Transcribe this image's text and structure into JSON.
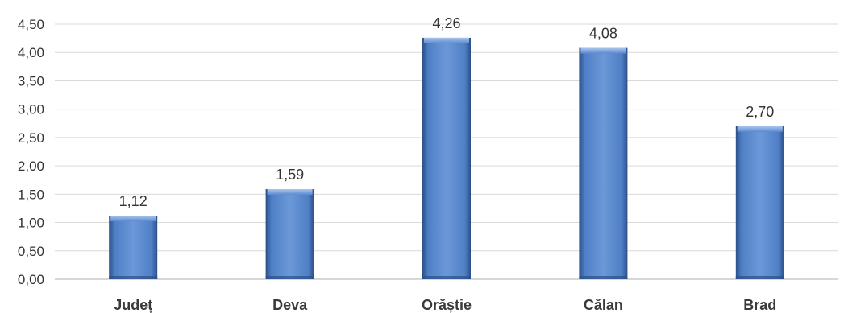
{
  "chart_data": {
    "type": "bar",
    "title": "",
    "xlabel": "",
    "ylabel": "",
    "categories": [
      "Județ",
      "Deva",
      "Orăștie",
      "Călan",
      "Brad"
    ],
    "values": [
      1.12,
      1.59,
      4.26,
      4.08,
      2.7
    ],
    "value_labels": [
      "1,12",
      "1,59",
      "4,26",
      "4,08",
      "2,70"
    ],
    "ylim": [
      0,
      4.5
    ],
    "yticks": [
      "0,00",
      "0,50",
      "1,00",
      "1,50",
      "2,00",
      "2,50",
      "3,00",
      "3,50",
      "4,00",
      "4,50"
    ],
    "grid": true,
    "legend": "none",
    "colors": {
      "bar": "#4f7fc6",
      "bar_light": "#8fb4e8",
      "bar_dark": "#2c4f86"
    }
  }
}
